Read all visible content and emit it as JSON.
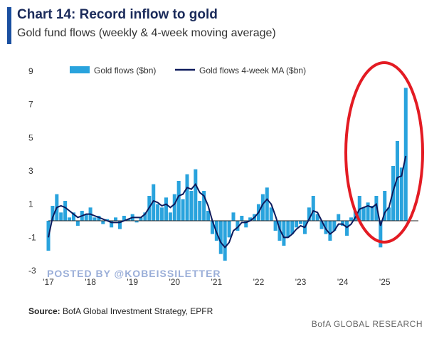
{
  "header": {
    "title": "Chart 14: Record inflow to gold",
    "subtitle": "Gold fund flows (weekly & 4-week moving average)"
  },
  "footer": {
    "source_label": "Source:",
    "source_text": "BofA Global Investment Strategy, EPFR",
    "brand": "BofA GLOBAL RESEARCH"
  },
  "watermark": "POSTED BY @KOBEISSILETTER",
  "colors": {
    "bars": "#29a3dd",
    "ma_line": "#0d1a5c",
    "highlight_ellipse": "#e31b23",
    "accent": "#1a4fa0"
  },
  "chart_data": {
    "type": "bar",
    "xlim": [
      2017,
      2025.8
    ],
    "ylim": [
      -3,
      9
    ],
    "y_ticks": [
      "9",
      "7",
      "5",
      "3",
      "1",
      "-1",
      "-3"
    ],
    "x_ticks": [
      "'17",
      "'18",
      "'19",
      "'20",
      "'21",
      "'22",
      "'23",
      "'24",
      "'25"
    ],
    "grid": false,
    "legend_position": "top",
    "series": [
      {
        "name": "Gold flows ($bn)",
        "type": "bar",
        "points": [
          [
            2017.0,
            -1.8
          ],
          [
            2017.1,
            0.9
          ],
          [
            2017.2,
            1.6
          ],
          [
            2017.3,
            0.5
          ],
          [
            2017.4,
            1.2
          ],
          [
            2017.5,
            0.2
          ],
          [
            2017.6,
            0.5
          ],
          [
            2017.7,
            -0.3
          ],
          [
            2017.8,
            0.6
          ],
          [
            2017.9,
            0.4
          ],
          [
            2018.0,
            0.8
          ],
          [
            2018.1,
            0.2
          ],
          [
            2018.2,
            0.3
          ],
          [
            2018.3,
            -0.2
          ],
          [
            2018.4,
            0.1
          ],
          [
            2018.5,
            -0.4
          ],
          [
            2018.6,
            0.2
          ],
          [
            2018.7,
            -0.5
          ],
          [
            2018.8,
            0.3
          ],
          [
            2018.9,
            0.1
          ],
          [
            2019.0,
            0.4
          ],
          [
            2019.1,
            -0.1
          ],
          [
            2019.2,
            0.2
          ],
          [
            2019.3,
            0.5
          ],
          [
            2019.4,
            1.5
          ],
          [
            2019.5,
            2.2
          ],
          [
            2019.6,
            1.0
          ],
          [
            2019.7,
            0.8
          ],
          [
            2019.8,
            1.4
          ],
          [
            2019.9,
            0.5
          ],
          [
            2020.0,
            1.6
          ],
          [
            2020.1,
            2.4
          ],
          [
            2020.2,
            1.3
          ],
          [
            2020.3,
            2.8
          ],
          [
            2020.4,
            1.8
          ],
          [
            2020.5,
            3.1
          ],
          [
            2020.6,
            1.2
          ],
          [
            2020.7,
            1.8
          ],
          [
            2020.8,
            0.6
          ],
          [
            2020.9,
            -0.8
          ],
          [
            2021.0,
            -1.2
          ],
          [
            2021.1,
            -2.0
          ],
          [
            2021.2,
            -2.4
          ],
          [
            2021.3,
            -1.0
          ],
          [
            2021.4,
            0.5
          ],
          [
            2021.5,
            -0.6
          ],
          [
            2021.6,
            0.3
          ],
          [
            2021.7,
            -0.4
          ],
          [
            2021.8,
            0.2
          ],
          [
            2021.9,
            0.4
          ],
          [
            2022.0,
            1.0
          ],
          [
            2022.1,
            1.6
          ],
          [
            2022.2,
            2.0
          ],
          [
            2022.3,
            0.8
          ],
          [
            2022.4,
            -0.6
          ],
          [
            2022.5,
            -1.2
          ],
          [
            2022.6,
            -1.5
          ],
          [
            2022.7,
            -1.0
          ],
          [
            2022.8,
            -0.8
          ],
          [
            2022.9,
            -0.4
          ],
          [
            2023.0,
            -0.2
          ],
          [
            2023.1,
            -0.8
          ],
          [
            2023.2,
            0.8
          ],
          [
            2023.3,
            1.5
          ],
          [
            2023.4,
            0.4
          ],
          [
            2023.5,
            -0.5
          ],
          [
            2023.6,
            -0.8
          ],
          [
            2023.7,
            -1.2
          ],
          [
            2023.8,
            -0.6
          ],
          [
            2023.9,
            0.4
          ],
          [
            2024.0,
            -0.3
          ],
          [
            2024.1,
            -0.9
          ],
          [
            2024.2,
            0.2
          ],
          [
            2024.3,
            0.6
          ],
          [
            2024.4,
            1.5
          ],
          [
            2024.5,
            0.8
          ],
          [
            2024.6,
            1.1
          ],
          [
            2024.7,
            0.9
          ],
          [
            2024.8,
            1.5
          ],
          [
            2024.9,
            -1.6
          ],
          [
            2025.0,
            1.8
          ],
          [
            2025.1,
            0.8
          ],
          [
            2025.2,
            3.3
          ],
          [
            2025.3,
            4.8
          ],
          [
            2025.4,
            3.2
          ],
          [
            2025.5,
            8.0
          ]
        ]
      },
      {
        "name": "Gold flows 4-week MA ($bn)",
        "type": "line",
        "points": [
          [
            2017.0,
            -1.0
          ],
          [
            2017.1,
            0.2
          ],
          [
            2017.2,
            0.8
          ],
          [
            2017.3,
            0.9
          ],
          [
            2017.4,
            0.8
          ],
          [
            2017.5,
            0.6
          ],
          [
            2017.6,
            0.4
          ],
          [
            2017.7,
            0.2
          ],
          [
            2017.8,
            0.3
          ],
          [
            2017.9,
            0.4
          ],
          [
            2018.0,
            0.4
          ],
          [
            2018.1,
            0.3
          ],
          [
            2018.2,
            0.2
          ],
          [
            2018.3,
            0.1
          ],
          [
            2018.4,
            0.0
          ],
          [
            2018.5,
            -0.1
          ],
          [
            2018.6,
            -0.1
          ],
          [
            2018.7,
            -0.1
          ],
          [
            2018.8,
            0.0
          ],
          [
            2018.9,
            0.1
          ],
          [
            2019.0,
            0.2
          ],
          [
            2019.1,
            0.2
          ],
          [
            2019.2,
            0.2
          ],
          [
            2019.3,
            0.4
          ],
          [
            2019.4,
            0.8
          ],
          [
            2019.5,
            1.2
          ],
          [
            2019.6,
            1.1
          ],
          [
            2019.7,
            0.9
          ],
          [
            2019.8,
            1.0
          ],
          [
            2019.9,
            0.8
          ],
          [
            2020.0,
            1.0
          ],
          [
            2020.1,
            1.5
          ],
          [
            2020.2,
            1.6
          ],
          [
            2020.3,
            2.0
          ],
          [
            2020.4,
            1.9
          ],
          [
            2020.5,
            2.2
          ],
          [
            2020.6,
            1.7
          ],
          [
            2020.7,
            1.5
          ],
          [
            2020.8,
            0.9
          ],
          [
            2020.9,
            0.0
          ],
          [
            2021.0,
            -0.7
          ],
          [
            2021.1,
            -1.3
          ],
          [
            2021.2,
            -1.6
          ],
          [
            2021.3,
            -1.3
          ],
          [
            2021.4,
            -0.6
          ],
          [
            2021.5,
            -0.4
          ],
          [
            2021.6,
            -0.1
          ],
          [
            2021.7,
            -0.1
          ],
          [
            2021.8,
            0.0
          ],
          [
            2021.9,
            0.2
          ],
          [
            2022.0,
            0.5
          ],
          [
            2022.1,
            1.0
          ],
          [
            2022.2,
            1.3
          ],
          [
            2022.3,
            1.0
          ],
          [
            2022.4,
            0.3
          ],
          [
            2022.5,
            -0.5
          ],
          [
            2022.6,
            -1.0
          ],
          [
            2022.7,
            -1.0
          ],
          [
            2022.8,
            -0.8
          ],
          [
            2022.9,
            -0.5
          ],
          [
            2023.0,
            -0.3
          ],
          [
            2023.1,
            -0.4
          ],
          [
            2023.2,
            0.1
          ],
          [
            2023.3,
            0.6
          ],
          [
            2023.4,
            0.5
          ],
          [
            2023.5,
            0.0
          ],
          [
            2023.6,
            -0.5
          ],
          [
            2023.7,
            -0.8
          ],
          [
            2023.8,
            -0.6
          ],
          [
            2023.9,
            -0.2
          ],
          [
            2024.0,
            -0.2
          ],
          [
            2024.1,
            -0.4
          ],
          [
            2024.2,
            -0.2
          ],
          [
            2024.3,
            0.2
          ],
          [
            2024.4,
            0.7
          ],
          [
            2024.5,
            0.8
          ],
          [
            2024.6,
            0.9
          ],
          [
            2024.7,
            0.8
          ],
          [
            2024.8,
            1.0
          ],
          [
            2024.9,
            -0.3
          ],
          [
            2025.0,
            0.5
          ],
          [
            2025.1,
            0.8
          ],
          [
            2025.2,
            1.8
          ],
          [
            2025.3,
            2.6
          ],
          [
            2025.4,
            2.7
          ],
          [
            2025.5,
            3.9
          ]
        ]
      }
    ]
  }
}
